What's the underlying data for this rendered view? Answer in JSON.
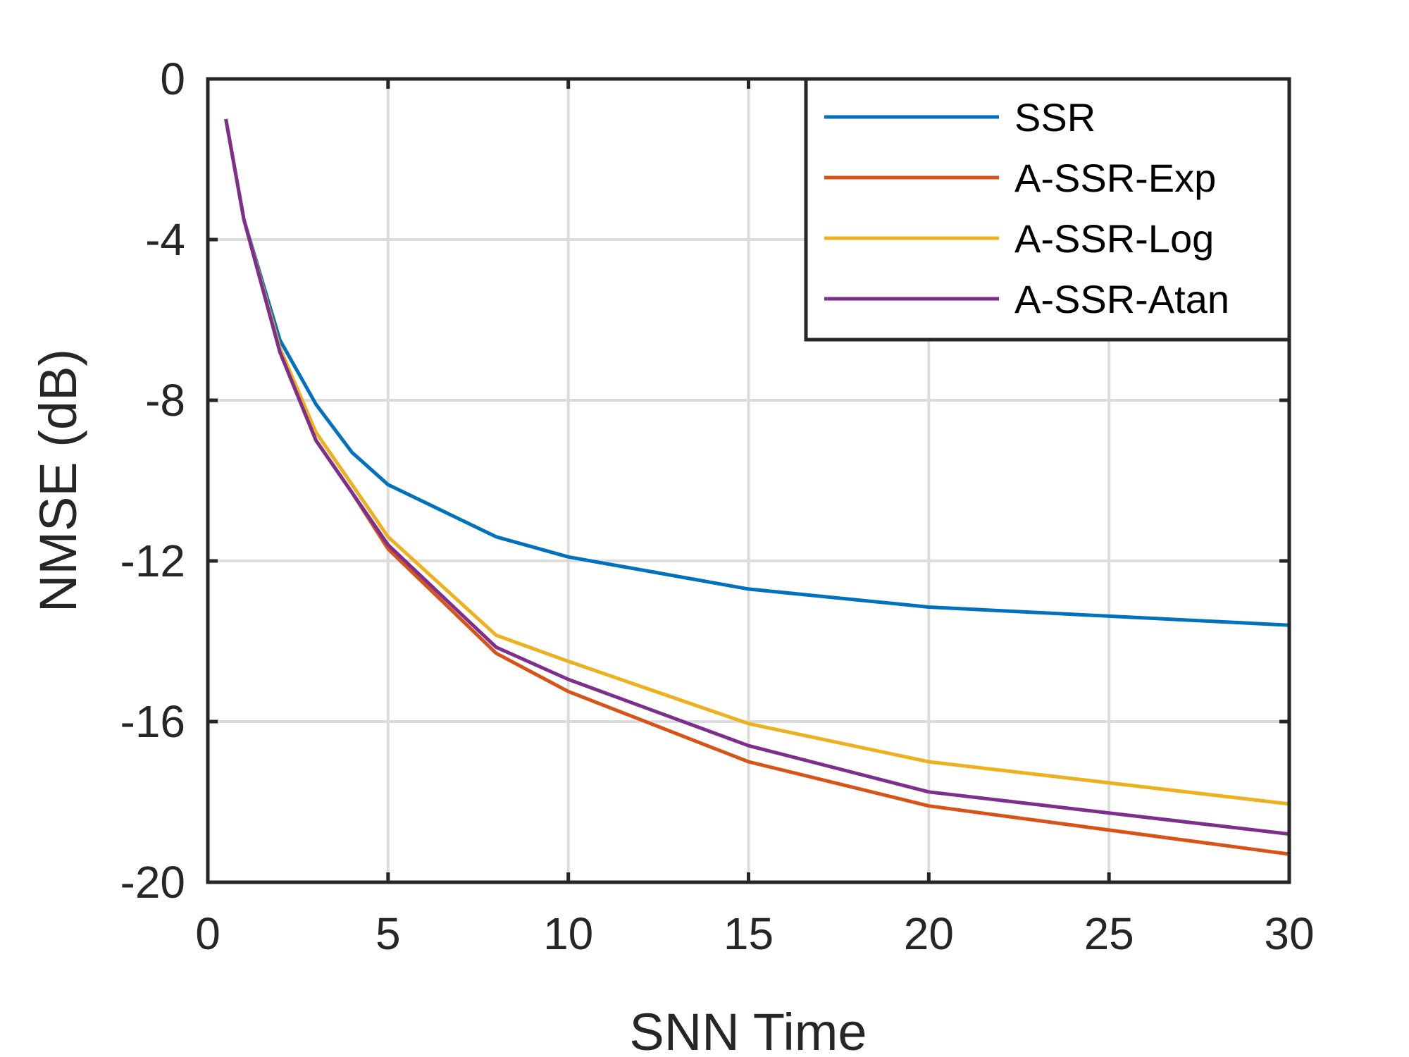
{
  "chart_data": {
    "type": "line",
    "title": "",
    "xlabel": "SNN Time",
    "ylabel": "NMSE (dB)",
    "xlim": [
      0,
      30
    ],
    "ylim": [
      -20,
      0
    ],
    "xticks": [
      0,
      5,
      10,
      15,
      20,
      25,
      30
    ],
    "yticks": [
      0,
      -4,
      -8,
      -12,
      -16,
      -20
    ],
    "xtick_labels": [
      "0",
      "5",
      "10",
      "15",
      "20",
      "25",
      "30"
    ],
    "ytick_labels": [
      "0",
      "-4",
      "-8",
      "-12",
      "-16",
      "-20"
    ],
    "grid": true,
    "legend_position": "top-right",
    "x": [
      0.5,
      1,
      2,
      3,
      4,
      5,
      8,
      10,
      15,
      20,
      30
    ],
    "series": [
      {
        "name": "SSR",
        "color": "#0072BD",
        "values": [
          -1.0,
          -3.5,
          -6.5,
          -8.1,
          -9.3,
          -10.1,
          -11.4,
          -11.9,
          -12.7,
          -13.15,
          -13.6
        ]
      },
      {
        "name": "A-SSR-Exp",
        "color": "#D95319",
        "values": [
          -1.0,
          -3.5,
          -6.8,
          -9.0,
          -10.3,
          -11.7,
          -14.3,
          -15.25,
          -17.0,
          -18.1,
          -19.3
        ]
      },
      {
        "name": "A-SSR-Log",
        "color": "#EDB120",
        "values": [
          -1.0,
          -3.5,
          -6.7,
          -8.8,
          -10.1,
          -11.4,
          -13.85,
          -14.5,
          -16.05,
          -17.0,
          -18.05
        ]
      },
      {
        "name": "A-SSR-Atan",
        "color": "#7E2F8E",
        "values": [
          -1.0,
          -3.5,
          -6.8,
          -9.0,
          -10.3,
          -11.6,
          -14.15,
          -14.95,
          -16.6,
          -17.75,
          -18.8
        ]
      }
    ]
  }
}
